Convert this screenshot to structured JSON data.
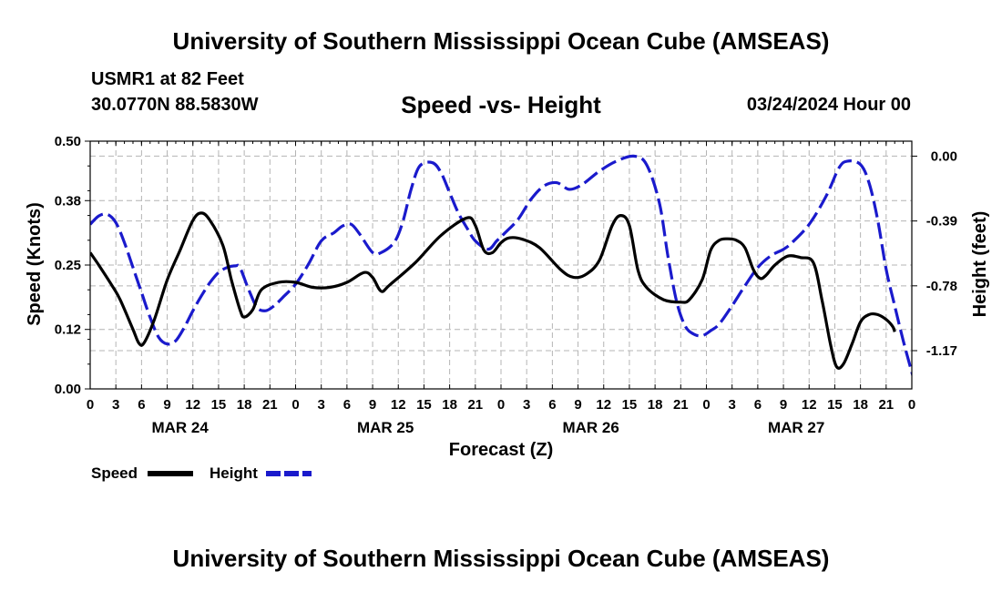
{
  "header": {
    "title": "University of Southern Mississippi Ocean Cube (AMSEAS)",
    "station": "USMR1 at 82 Feet",
    "coords": "30.0770N  88.5830W",
    "subtitle": "Speed -vs- Height",
    "datetime": "03/24/2024 Hour 00"
  },
  "footer": {
    "title": "University of Southern Mississippi Ocean Cube (AMSEAS)"
  },
  "chart_data": {
    "type": "line",
    "title": "Speed -vs- Height",
    "xlabel": "Forecast (Z)",
    "ylabel": "Speed (Knots)",
    "y2label": "Height (feet)",
    "x_range_hours": [
      0,
      96
    ],
    "x_tick_labels": [
      "0",
      "3",
      "6",
      "9",
      "12",
      "15",
      "18",
      "21",
      "0",
      "3",
      "6",
      "9",
      "12",
      "15",
      "18",
      "21",
      "0",
      "3",
      "6",
      "9",
      "12",
      "15",
      "18",
      "21",
      "0",
      "3",
      "6",
      "9",
      "12",
      "15",
      "18",
      "21",
      "0"
    ],
    "date_labels": [
      {
        "label": "MAR 24",
        "center_hour": 10.5
      },
      {
        "label": "MAR 25",
        "center_hour": 34.5
      },
      {
        "label": "MAR 26",
        "center_hour": 58.5
      },
      {
        "label": "MAR 27",
        "center_hour": 82.5
      }
    ],
    "ylim": [
      0,
      0.5
    ],
    "yticks": [
      0.0,
      0.12,
      0.25,
      0.38,
      0.5
    ],
    "ytick_labels": [
      "0.00",
      "0.12",
      "0.25",
      "0.38",
      "0.50"
    ],
    "y2lim": [
      -1.4,
      0.09
    ],
    "y2ticks": [
      0.0,
      -0.39,
      -0.78,
      -1.17
    ],
    "y2tick_labels": [
      "0.00",
      "-0.39",
      "-0.78",
      "-1.17"
    ],
    "grid": true,
    "legend": [
      {
        "name": "Speed",
        "color": "#000000",
        "dash": "solid"
      },
      {
        "name": "Height",
        "color": "#1a1acc",
        "dash": "dashed"
      }
    ],
    "series": [
      {
        "name": "Speed",
        "axis": "left",
        "color": "#000000",
        "points": [
          [
            0,
            0.275
          ],
          [
            1,
            0.25
          ],
          [
            2.5,
            0.21
          ],
          [
            3.5,
            0.18
          ],
          [
            5,
            0.12
          ],
          [
            5.7,
            0.092
          ],
          [
            6.3,
            0.093
          ],
          [
            7.5,
            0.14
          ],
          [
            9,
            0.22
          ],
          [
            10.5,
            0.28
          ],
          [
            12,
            0.34
          ],
          [
            13,
            0.355
          ],
          [
            14,
            0.34
          ],
          [
            15.5,
            0.29
          ],
          [
            16.5,
            0.22
          ],
          [
            17.5,
            0.16
          ],
          [
            18,
            0.145
          ],
          [
            19,
            0.16
          ],
          [
            20,
            0.2
          ],
          [
            22,
            0.215
          ],
          [
            24,
            0.215
          ],
          [
            26,
            0.205
          ],
          [
            28,
            0.205
          ],
          [
            30,
            0.215
          ],
          [
            32,
            0.235
          ],
          [
            33,
            0.225
          ],
          [
            34,
            0.197
          ],
          [
            35,
            0.21
          ],
          [
            38,
            0.255
          ],
          [
            41,
            0.31
          ],
          [
            44,
            0.345
          ],
          [
            45,
            0.33
          ],
          [
            46,
            0.28
          ],
          [
            47,
            0.275
          ],
          [
            48,
            0.295
          ],
          [
            49,
            0.305
          ],
          [
            50.5,
            0.302
          ],
          [
            52.5,
            0.285
          ],
          [
            55,
            0.24
          ],
          [
            56.5,
            0.225
          ],
          [
            58,
            0.232
          ],
          [
            59.5,
            0.26
          ],
          [
            61,
            0.33
          ],
          [
            62,
            0.35
          ],
          [
            63,
            0.33
          ],
          [
            64,
            0.24
          ],
          [
            65,
            0.205
          ],
          [
            67,
            0.18
          ],
          [
            69,
            0.175
          ],
          [
            70,
            0.18
          ],
          [
            71.5,
            0.22
          ],
          [
            72.5,
            0.28
          ],
          [
            73.5,
            0.3
          ],
          [
            74.5,
            0.303
          ],
          [
            75.5,
            0.3
          ],
          [
            76.5,
            0.285
          ],
          [
            77.5,
            0.24
          ],
          [
            78.3,
            0.223
          ],
          [
            79,
            0.23
          ],
          [
            80,
            0.25
          ],
          [
            81.5,
            0.268
          ],
          [
            83,
            0.265
          ],
          [
            84.5,
            0.255
          ],
          [
            85.5,
            0.18
          ],
          [
            86.5,
            0.09
          ],
          [
            87.2,
            0.045
          ],
          [
            88,
            0.05
          ],
          [
            89,
            0.09
          ],
          [
            90,
            0.135
          ],
          [
            91,
            0.15
          ],
          [
            92,
            0.15
          ],
          [
            93,
            0.14
          ],
          [
            93.8,
            0.125
          ],
          [
            94,
            0.115
          ]
        ]
      },
      {
        "name": "Height",
        "axis": "right",
        "color": "#1a1acc",
        "points": [
          [
            0,
            -0.41
          ],
          [
            1,
            -0.36
          ],
          [
            2,
            -0.35
          ],
          [
            3,
            -0.4
          ],
          [
            4,
            -0.52
          ],
          [
            5,
            -0.67
          ],
          [
            6,
            -0.82
          ],
          [
            7,
            -0.97
          ],
          [
            8,
            -1.09
          ],
          [
            9,
            -1.13
          ],
          [
            10,
            -1.11
          ],
          [
            11,
            -1.03
          ],
          [
            12,
            -0.93
          ],
          [
            13,
            -0.84
          ],
          [
            14,
            -0.76
          ],
          [
            15,
            -0.7
          ],
          [
            16,
            -0.67
          ],
          [
            17,
            -0.66
          ],
          [
            17.5,
            -0.67
          ],
          [
            18.5,
            -0.8
          ],
          [
            19.5,
            -0.91
          ],
          [
            20.5,
            -0.93
          ],
          [
            21.5,
            -0.9
          ],
          [
            22.5,
            -0.85
          ],
          [
            24,
            -0.77
          ],
          [
            25.5,
            -0.65
          ],
          [
            27,
            -0.51
          ],
          [
            28.5,
            -0.46
          ],
          [
            29.5,
            -0.42
          ],
          [
            30.5,
            -0.41
          ],
          [
            31.5,
            -0.47
          ],
          [
            33,
            -0.58
          ],
          [
            34,
            -0.58
          ],
          [
            35.5,
            -0.52
          ],
          [
            36.5,
            -0.4
          ],
          [
            37.5,
            -0.2
          ],
          [
            38.5,
            -0.06
          ],
          [
            40,
            -0.04
          ],
          [
            41,
            -0.1
          ],
          [
            42,
            -0.22
          ],
          [
            43,
            -0.34
          ],
          [
            44,
            -0.43
          ],
          [
            45,
            -0.51
          ],
          [
            46.5,
            -0.56
          ],
          [
            47.5,
            -0.51
          ],
          [
            48.5,
            -0.46
          ],
          [
            50,
            -0.38
          ],
          [
            51.5,
            -0.26
          ],
          [
            53,
            -0.18
          ],
          [
            54.5,
            -0.16
          ],
          [
            56,
            -0.2
          ],
          [
            57.5,
            -0.17
          ],
          [
            59.5,
            -0.09
          ],
          [
            61.5,
            -0.03
          ],
          [
            63.5,
            0.0
          ],
          [
            65,
            -0.05
          ],
          [
            66.5,
            -0.28
          ],
          [
            67.5,
            -0.6
          ],
          [
            68.5,
            -0.87
          ],
          [
            69.5,
            -1.02
          ],
          [
            70.5,
            -1.07
          ],
          [
            71.5,
            -1.08
          ],
          [
            72.5,
            -1.05
          ],
          [
            73.5,
            -1.01
          ],
          [
            75,
            -0.9
          ],
          [
            76.5,
            -0.78
          ],
          [
            78,
            -0.67
          ],
          [
            79.5,
            -0.6
          ],
          [
            81,
            -0.56
          ],
          [
            82,
            -0.52
          ],
          [
            84,
            -0.41
          ],
          [
            86,
            -0.24
          ],
          [
            87.5,
            -0.07
          ],
          [
            88.5,
            -0.03
          ],
          [
            90,
            -0.05
          ],
          [
            91,
            -0.16
          ],
          [
            92,
            -0.38
          ],
          [
            93,
            -0.68
          ],
          [
            94,
            -0.9
          ],
          [
            95,
            -1.11
          ],
          [
            96,
            -1.3
          ],
          [
            96.5,
            -1.38
          ]
        ]
      }
    ]
  }
}
